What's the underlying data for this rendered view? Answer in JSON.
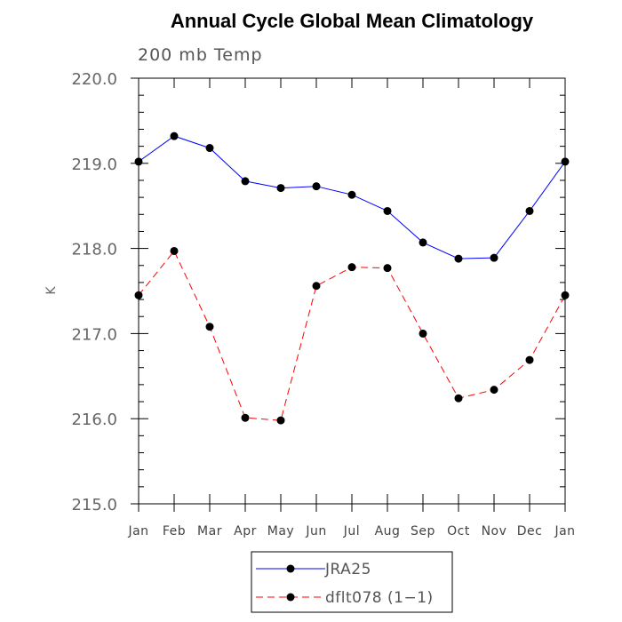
{
  "chart_data": {
    "type": "line",
    "title": "Annual Cycle Global Mean Climatology",
    "subtitle": "200 mb Temp",
    "xlabel": "",
    "ylabel": "K",
    "ylim": [
      215.0,
      220.0
    ],
    "yticks": [
      "215.0",
      "216.0",
      "217.0",
      "218.0",
      "219.0",
      "220.0"
    ],
    "categories": [
      "Jan",
      "Feb",
      "Mar",
      "Apr",
      "May",
      "Jun",
      "Jul",
      "Aug",
      "Sep",
      "Oct",
      "Nov",
      "Dec",
      "Jan"
    ],
    "grid": false,
    "legend_position": "bottom",
    "series": [
      {
        "name": "JRA25",
        "color": "#0000ff",
        "dash": "solid",
        "values": [
          219.02,
          219.32,
          219.18,
          218.79,
          218.71,
          218.73,
          218.63,
          218.44,
          218.07,
          217.88,
          217.89,
          218.44,
          219.02
        ]
      },
      {
        "name": "dflt078 (1−1)",
        "color": "#ff0000",
        "dash": "dashed",
        "values": [
          217.45,
          217.97,
          217.08,
          216.01,
          215.98,
          217.56,
          217.78,
          217.77,
          217.0,
          216.24,
          216.34,
          216.69,
          217.45
        ]
      }
    ]
  }
}
